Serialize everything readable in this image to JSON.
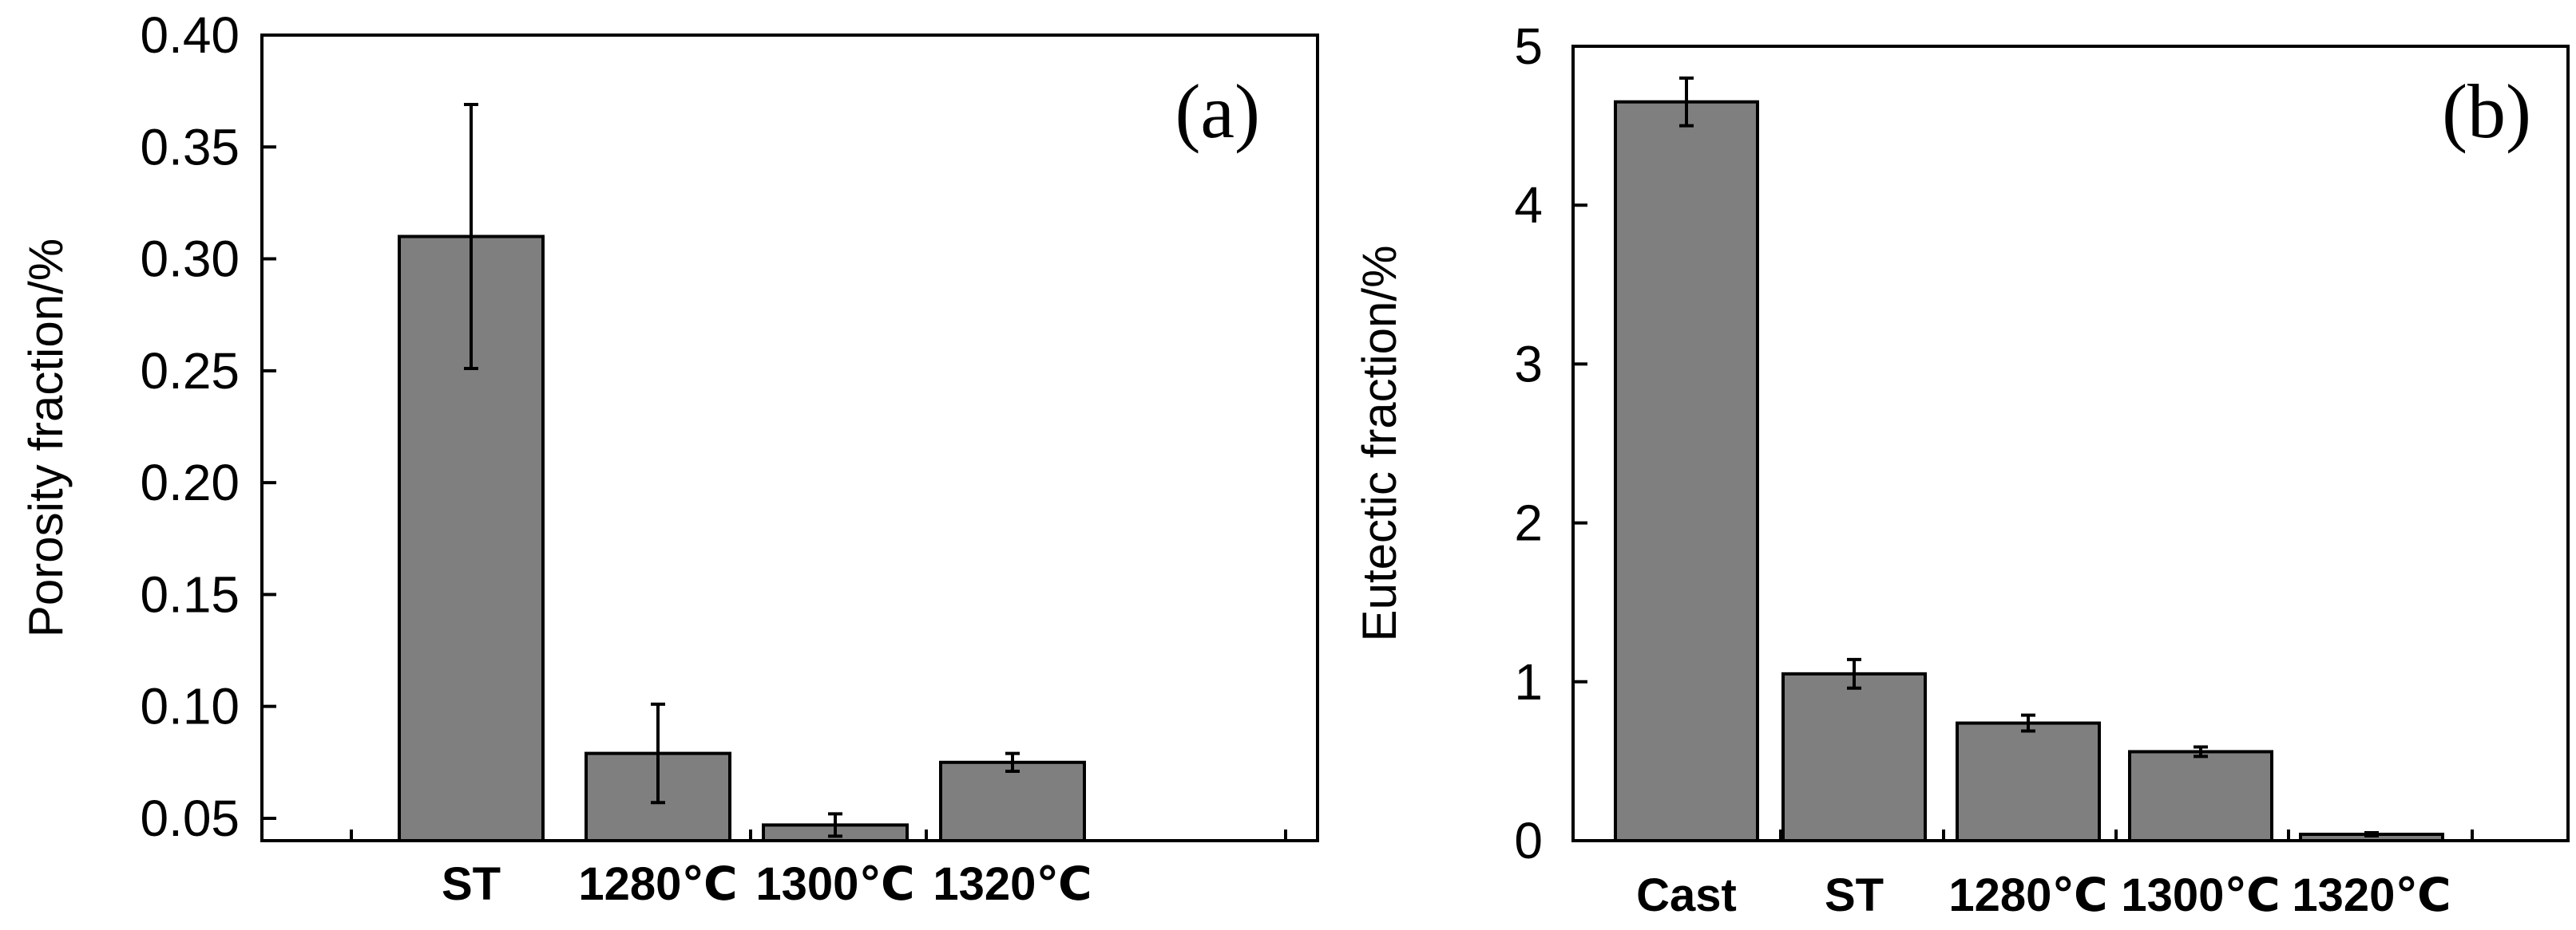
{
  "chart_data": [
    {
      "type": "bar",
      "panel_label": "(a)",
      "ylabel": "Porosity fraction/%",
      "xlabel": "",
      "categories": [
        "ST",
        "1280℃",
        "1300℃",
        "1320℃"
      ],
      "values": [
        0.31,
        0.079,
        0.047,
        0.075
      ],
      "errors": [
        0.059,
        0.022,
        0.005,
        0.004
      ],
      "ylim": [
        0.04,
        0.4
      ],
      "yticks": [
        0.05,
        0.1,
        0.15,
        0.2,
        0.25,
        0.3,
        0.35,
        0.4
      ],
      "ytick_labels": [
        "0.05",
        "0.10",
        "0.15",
        "0.20",
        "0.25",
        "0.30",
        "0.35",
        "0.40"
      ],
      "bar_color": "#7f7f7f",
      "grid": false
    },
    {
      "type": "bar",
      "panel_label": "(b)",
      "ylabel": "Eutectic fraction/%",
      "xlabel": "",
      "categories": [
        "Cast",
        "ST",
        "1280℃",
        "1300℃",
        "1320℃"
      ],
      "values": [
        4.65,
        1.05,
        0.74,
        0.56,
        0.04
      ],
      "errors": [
        0.15,
        0.09,
        0.05,
        0.03,
        0.01
      ],
      "ylim": [
        0,
        5
      ],
      "yticks": [
        0,
        1,
        2,
        3,
        4,
        5
      ],
      "ytick_labels": [
        "0",
        "1",
        "2",
        "3",
        "4",
        "5"
      ],
      "bar_color": "#7f7f7f",
      "grid": false
    }
  ]
}
